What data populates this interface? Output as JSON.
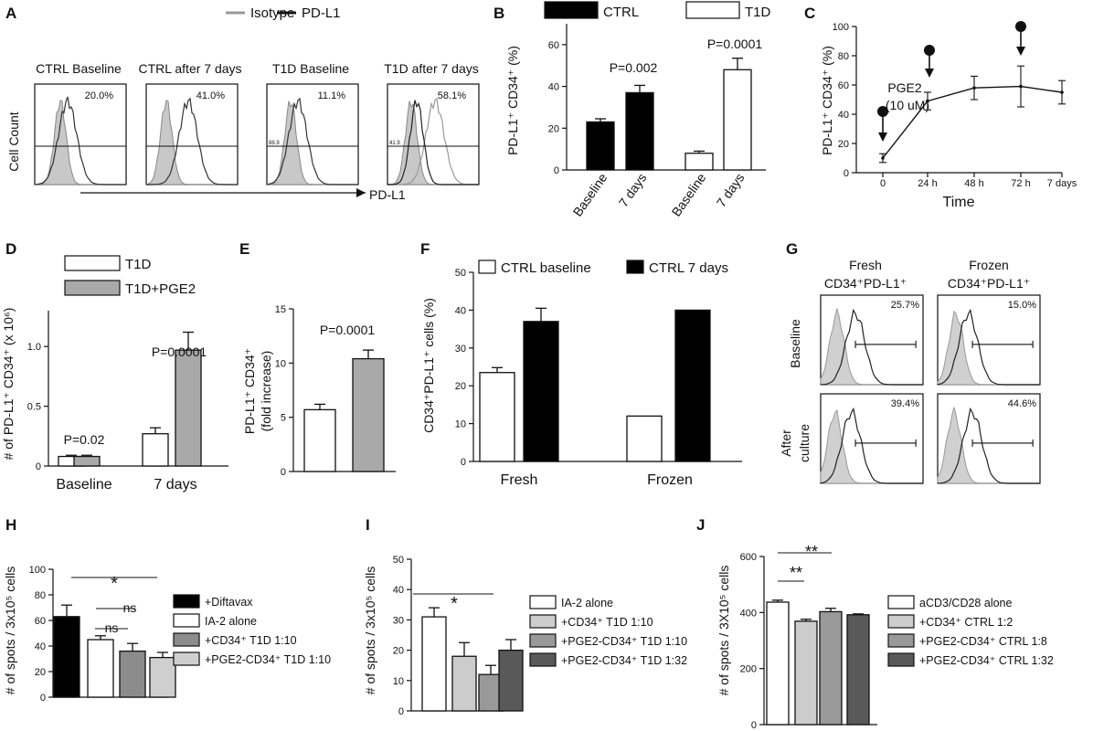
{
  "figure_type": "multi-panel scientific figure",
  "panels": {
    "A": {
      "label": "A",
      "legend": [
        "Isotype",
        "PD-L1"
      ],
      "titles": [
        "CTRL Baseline",
        "CTRL after 7 days",
        "T1D Baseline",
        "T1D after 7 days"
      ],
      "percents": [
        "20.0%",
        "41.0%",
        "11.1%",
        "58.1%"
      ],
      "gate_labels": [
        "",
        "",
        "88.9",
        "41.9"
      ],
      "ylabel": "Cell Count",
      "xlabel": "PD-L1"
    },
    "B": {
      "label": "B",
      "legend": [
        "CTRL",
        "T1D"
      ],
      "ylabel": "PD-L1⁺ CD34⁺ (%)",
      "yticks": [
        "0",
        "20",
        "40",
        "60"
      ],
      "categories": [
        "Baseline",
        "7 days",
        "Baseline",
        "7 days"
      ],
      "pvalues": [
        "P=0.002",
        "P=0.0001"
      ]
    },
    "C": {
      "label": "C",
      "ylabel": "PD-L1⁺ CD34⁺ (%)",
      "yticks": [
        "0",
        "20",
        "40",
        "60",
        "80",
        "100"
      ],
      "xticks": [
        "0",
        "24 h",
        "48 h",
        "72 h",
        "7 days"
      ],
      "xlabel": "Time",
      "annotation": [
        "PGE2",
        "(10 uM)"
      ]
    },
    "D": {
      "label": "D",
      "legend": [
        "T1D",
        "T1D+PGE2"
      ],
      "ylabel": "# of PD-L1⁺ CD34⁺ (x 10⁶)",
      "yticks": [
        "0",
        "0.5",
        "1.0"
      ],
      "categories": [
        "Baseline",
        "7 days"
      ],
      "pvalues": [
        "P=0.02",
        "P=0.0001"
      ]
    },
    "E": {
      "label": "E",
      "ylabel": [
        "PD-L1⁺ CD34⁺",
        "(fold increase)"
      ],
      "yticks": [
        "0",
        "5",
        "10",
        "15"
      ],
      "pvalue": "P=0.0001"
    },
    "F": {
      "label": "F",
      "legend": [
        "CTRL baseline",
        "CTRL 7 days"
      ],
      "ylabel": "CD34⁺PD-L1⁺ cells (%)",
      "yticks": [
        "0",
        "10",
        "20",
        "30",
        "40",
        "50"
      ],
      "categories": [
        "Fresh",
        "Frozen"
      ]
    },
    "G": {
      "label": "G",
      "col_titles": [
        [
          "Fresh",
          "CD34⁺PD-L1⁺"
        ],
        [
          "Frozen",
          "CD34⁺PD-L1⁺"
        ]
      ],
      "row_titles": [
        [
          "Baseline"
        ],
        [
          "After",
          "culture"
        ]
      ],
      "percents": [
        "25.7%",
        "15.0%",
        "39.4%",
        "44.6%"
      ]
    },
    "H": {
      "label": "H",
      "ylabel": "# of spots / 3x10⁵ cells",
      "yticks": [
        "0",
        "20",
        "40",
        "60",
        "80",
        "100"
      ],
      "legend": [
        "+Diftavax",
        "IA-2 alone",
        "+CD34⁺ T1D 1:10",
        "+PGE2-CD34⁺ T1D 1:10"
      ],
      "sig": [
        "*",
        "ns",
        "ns"
      ]
    },
    "I": {
      "label": "I",
      "ylabel": "# of spots / 3x10⁵ cells",
      "yticks": [
        "0",
        "10",
        "20",
        "30",
        "40",
        "50"
      ],
      "legend": [
        "IA-2 alone",
        "+CD34⁺ T1D 1:10",
        "+PGE2-CD34⁺ T1D 1:10",
        "+PGE2-CD34⁺ T1D 1:32"
      ],
      "sig": [
        "*"
      ]
    },
    "J": {
      "label": "J",
      "ylabel": "# of spots / 3X10⁵ cells",
      "yticks": [
        "0",
        "200",
        "400",
        "600"
      ],
      "legend": [
        "aCD3/CD28 alone",
        "+CD34⁺ CTRL 1:2",
        "+PGE2-CD34⁺ CTRL 1:8",
        "+PGE2-CD34⁺ CTRL 1:32"
      ],
      "sig": [
        "**",
        "**"
      ]
    }
  },
  "chart_data": [
    {
      "panel": "B",
      "type": "bar",
      "categories": [
        "CTRL Baseline",
        "CTRL 7 days",
        "T1D Baseline",
        "T1D 7 days"
      ],
      "values": [
        23,
        37,
        8,
        48
      ],
      "errors": [
        1.5,
        3.5,
        1,
        5.5
      ],
      "ylim": [
        0,
        70
      ]
    },
    {
      "panel": "C",
      "type": "line",
      "x": [
        "0",
        "24 h",
        "48 h",
        "72 h",
        "7 days"
      ],
      "values": [
        10,
        49,
        58,
        59,
        55
      ],
      "errors": [
        3,
        6,
        8,
        14,
        8
      ],
      "ylim": [
        0,
        100
      ]
    },
    {
      "panel": "D",
      "type": "bar",
      "categories": [
        "Baseline",
        "7 days"
      ],
      "series": [
        {
          "name": "T1D",
          "values": [
            0.08,
            0.27
          ],
          "errors": [
            0.01,
            0.05
          ]
        },
        {
          "name": "T1D+PGE2",
          "values": [
            0.08,
            0.97
          ],
          "errors": [
            0.01,
            0.15
          ]
        }
      ],
      "ylim": [
        0,
        1.3
      ]
    },
    {
      "panel": "E",
      "type": "bar",
      "categories": [
        "T1D",
        "T1D+PGE2"
      ],
      "values": [
        5.7,
        10.4
      ],
      "errors": [
        0.5,
        0.8
      ],
      "ylim": [
        0,
        15
      ]
    },
    {
      "panel": "F",
      "type": "bar",
      "categories": [
        "Fresh",
        "Frozen"
      ],
      "series": [
        {
          "name": "CTRL baseline",
          "values": [
            23.5,
            12
          ],
          "errors": [
            1.3,
            0
          ]
        },
        {
          "name": "CTRL 7 days",
          "values": [
            37,
            40
          ],
          "errors": [
            3.5,
            0
          ]
        }
      ],
      "ylim": [
        0,
        50
      ]
    },
    {
      "panel": "H",
      "type": "bar",
      "categories": [
        "+Diftavax",
        "IA-2 alone",
        "+CD34⁺ T1D 1:10",
        "+PGE2-CD34⁺ T1D 1:10"
      ],
      "values": [
        63,
        45,
        36,
        31
      ],
      "errors": [
        9,
        3,
        6,
        4
      ],
      "ylim": [
        0,
        100
      ]
    },
    {
      "panel": "I",
      "type": "bar",
      "categories": [
        "IA-2 alone",
        "+CD34⁺ T1D 1:10",
        "+PGE2-CD34⁺ T1D 1:10",
        "+PGE2-CD34⁺ T1D 1:32"
      ],
      "values": [
        31,
        18,
        12,
        20
      ],
      "errors": [
        3,
        4.5,
        3,
        3.5
      ],
      "ylim": [
        0,
        50
      ]
    },
    {
      "panel": "J",
      "type": "bar",
      "categories": [
        "aCD3/CD28 alone",
        "+CD34⁺ CTRL 1:2",
        "+PGE2-CD34⁺ CTRL 1:8",
        "+PGE2-CD34⁺ CTRL 1:32"
      ],
      "values": [
        437,
        369,
        403,
        392
      ],
      "errors": [
        7,
        7,
        12,
        3
      ],
      "ylim": [
        0,
        600
      ]
    }
  ]
}
